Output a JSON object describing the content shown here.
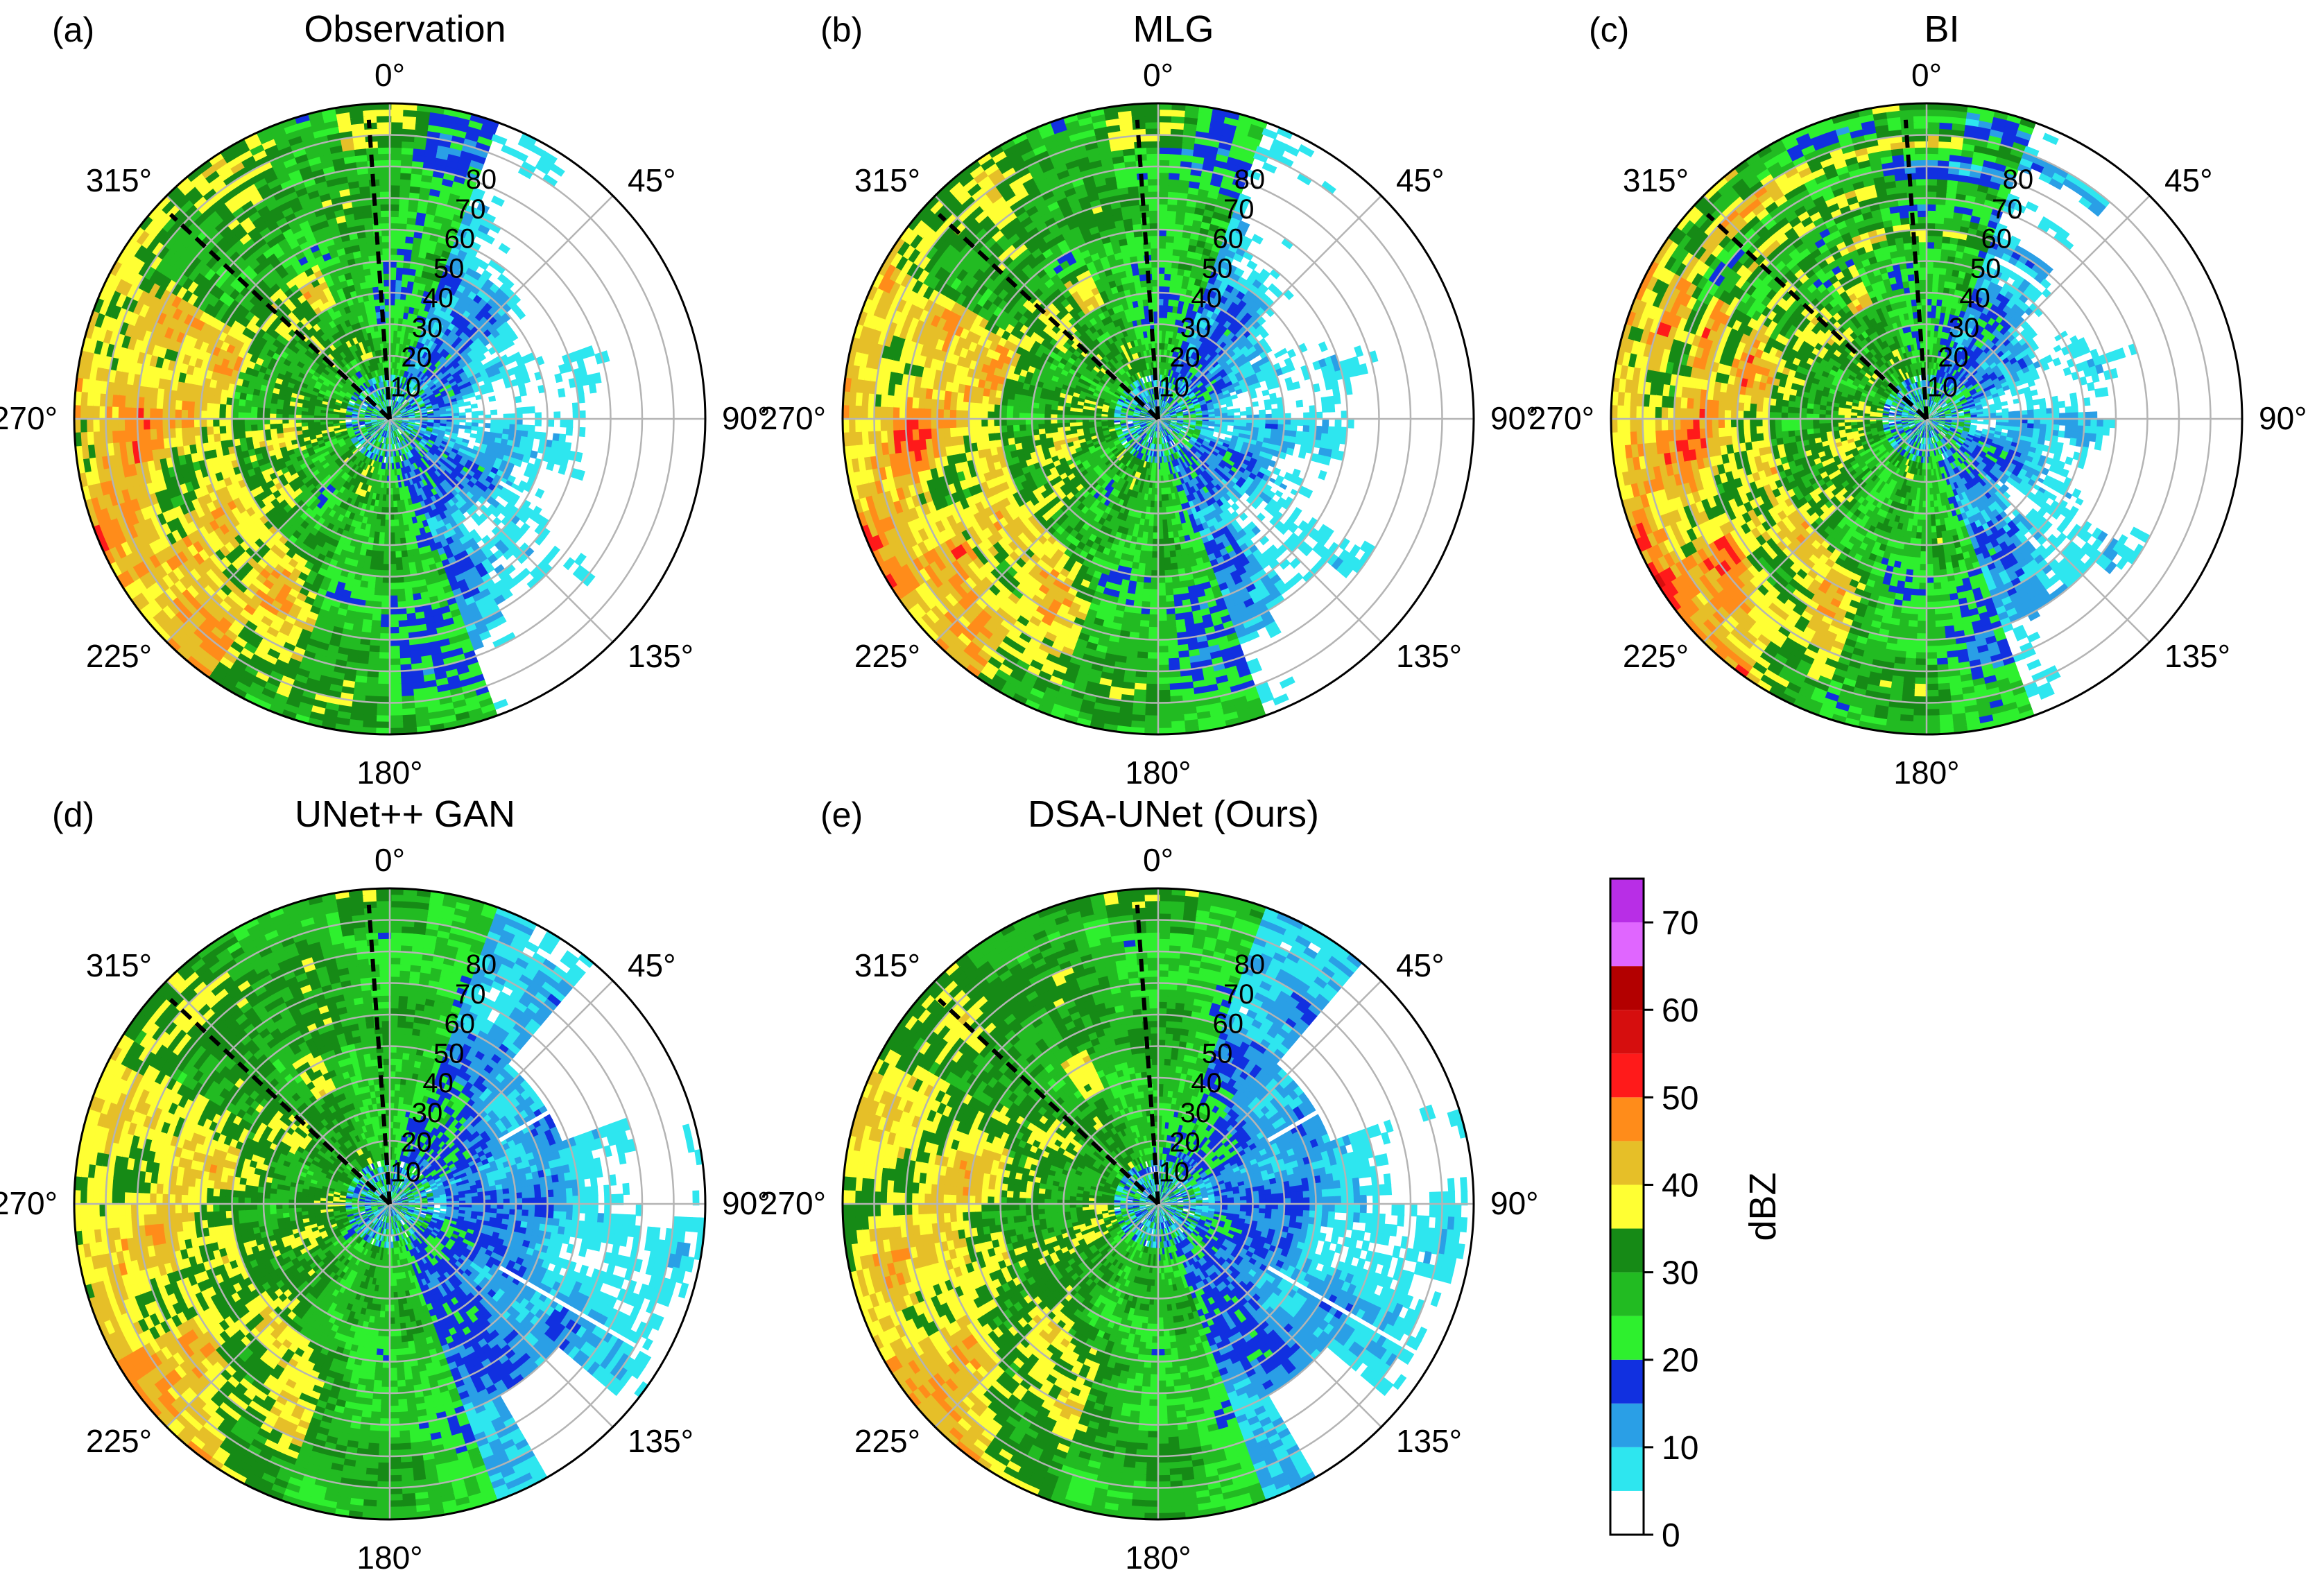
{
  "figure": {
    "panels": [
      {
        "letter": "(a)",
        "title": "Observation"
      },
      {
        "letter": "(b)",
        "title": "MLG"
      },
      {
        "letter": "(c)",
        "title": "BI"
      },
      {
        "letter": "(d)",
        "title": "UNet++ GAN"
      },
      {
        "letter": "(e)",
        "title": "DSA-UNet (Ours)"
      }
    ],
    "angle_labels": [
      "0°",
      "45°",
      "90°",
      "135°",
      "180°",
      "225°",
      "270°",
      "315°"
    ],
    "range_labels": [
      "10",
      "20",
      "30",
      "40",
      "50",
      "60",
      "70",
      "80"
    ],
    "colorbar": {
      "label": "dBZ",
      "ticks": [
        "0",
        "10",
        "20",
        "30",
        "40",
        "50",
        "60",
        "70"
      ],
      "levels": [
        0,
        5,
        10,
        15,
        20,
        25,
        30,
        35,
        40,
        45,
        50,
        55,
        60,
        65,
        70,
        75
      ],
      "colors": [
        "#ffffff",
        "#2ee6ef",
        "#2a9fe6",
        "#1130e0",
        "#2ef02e",
        "#22bb22",
        "#168a16",
        "#ffff33",
        "#e6bf28",
        "#ff8c1a",
        "#ff1a1a",
        "#d60e0e",
        "#b30000",
        "#e066ff",
        "#b82ee6"
      ]
    }
  },
  "chart_data": [
    {
      "type": "heatmap",
      "projection": "polar",
      "title": "Observation",
      "theta_labels_deg": [
        0,
        45,
        90,
        135,
        180,
        225,
        270,
        315
      ],
      "r_ticks": [
        10,
        20,
        30,
        40,
        50,
        60,
        70,
        80
      ],
      "dashed_lines_deg": [
        356,
        313
      ],
      "color_field": "dBZ",
      "clim": [
        0,
        75
      ]
    },
    {
      "type": "heatmap",
      "projection": "polar",
      "title": "MLG",
      "theta_labels_deg": [
        0,
        45,
        90,
        135,
        180,
        225,
        270,
        315
      ],
      "r_ticks": [
        10,
        20,
        30,
        40,
        50,
        60,
        70,
        80
      ],
      "dashed_lines_deg": [
        356,
        313
      ],
      "color_field": "dBZ",
      "clim": [
        0,
        75
      ]
    },
    {
      "type": "heatmap",
      "projection": "polar",
      "title": "BI",
      "theta_labels_deg": [
        0,
        45,
        90,
        135,
        180,
        225,
        270,
        315
      ],
      "r_ticks": [
        10,
        20,
        30,
        40,
        50,
        60,
        70,
        80
      ],
      "dashed_lines_deg": [
        356,
        313
      ],
      "color_field": "dBZ",
      "clim": [
        0,
        75
      ]
    },
    {
      "type": "heatmap",
      "projection": "polar",
      "title": "UNet++ GAN",
      "theta_labels_deg": [
        0,
        45,
        90,
        135,
        180,
        225,
        270,
        315
      ],
      "r_ticks": [
        10,
        20,
        30,
        40,
        50,
        60,
        70,
        80
      ],
      "dashed_lines_deg": [
        356,
        313
      ],
      "color_field": "dBZ",
      "clim": [
        0,
        75
      ]
    },
    {
      "type": "heatmap",
      "projection": "polar",
      "title": "DSA-UNet (Ours)",
      "theta_labels_deg": [
        0,
        45,
        90,
        135,
        180,
        225,
        270,
        315
      ],
      "r_ticks": [
        10,
        20,
        30,
        40,
        50,
        60,
        70,
        80
      ],
      "dashed_lines_deg": [
        356,
        313
      ],
      "color_field": "dBZ",
      "clim": [
        0,
        75
      ]
    }
  ]
}
